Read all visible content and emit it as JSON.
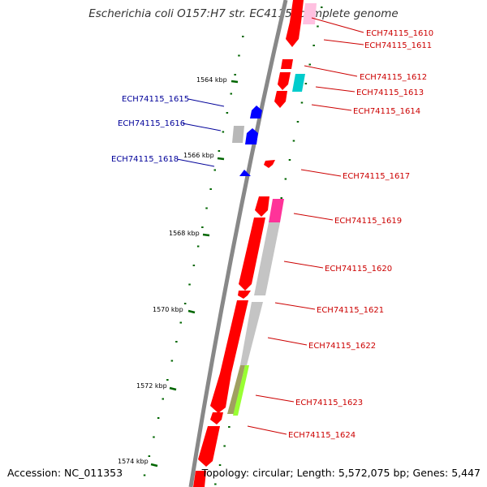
{
  "title": "Escherichia coli O157:H7 str. EC4115, complete genome",
  "footer": {
    "accession": "Accession: NC_011353",
    "summary": "Topology: circular; Length: 5,572,075 bp; Genes: 5,447"
  },
  "colors": {
    "forward_gene": "#ff0000",
    "reverse_gene": "#0000ff",
    "forward_label": "#cc0000",
    "reverse_label": "#000099",
    "backbone": "#888888",
    "tick": "#006600",
    "cog_grey": "#b8b8b8",
    "cog_cyan": "#00cccc",
    "cog_magenta": "#ff3399",
    "cog_pink": "#ffc0e0",
    "cog_yellowgreen": "#99ff33"
  },
  "scale_labels": [
    "1564 kbp",
    "1566 kbp",
    "1568 kbp",
    "1570 kbp",
    "1572 kbp",
    "1574 kbp"
  ],
  "forward_genes": [
    "ECH74115_1610",
    "ECH74115_1611",
    "ECH74115_1612",
    "ECH74115_1613",
    "ECH74115_1614",
    "ECH74115_1617",
    "ECH74115_1619",
    "ECH74115_1620",
    "ECH74115_1621",
    "ECH74115_1622",
    "ECH74115_1623",
    "ECH74115_1624"
  ],
  "reverse_genes": [
    "ECH74115_1615",
    "ECH74115_1616",
    "ECH74115_1618"
  ]
}
